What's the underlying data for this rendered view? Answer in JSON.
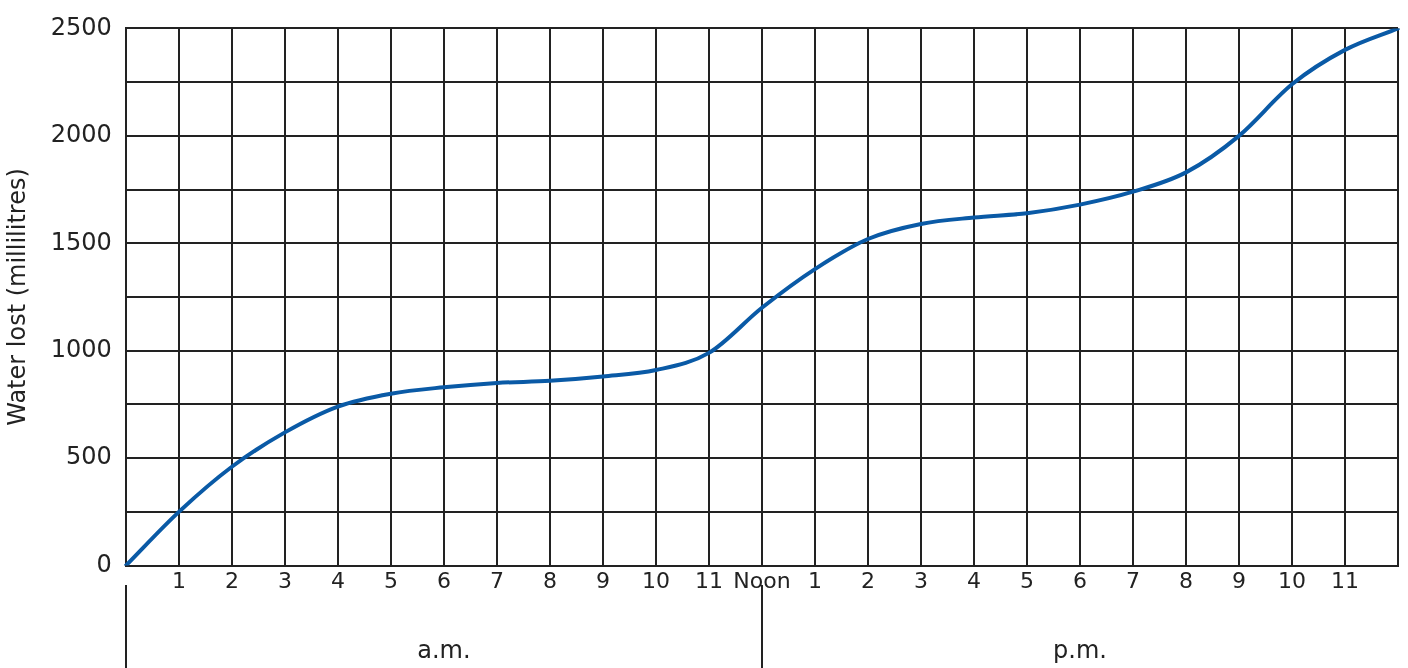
{
  "chart_data": {
    "type": "line",
    "ylabel": "Water lost (millilitres)",
    "categories": [
      null,
      "1",
      "2",
      "3",
      "4",
      "5",
      "6",
      "7",
      "8",
      "9",
      "10",
      "11",
      "Noon",
      "1",
      "2",
      "3",
      "4",
      "5",
      "6",
      "7",
      "8",
      "9",
      "10",
      "11",
      null
    ],
    "series": [
      {
        "color": "#0a5aa6",
        "values": [
          0,
          250,
          460,
          620,
          740,
          800,
          830,
          850,
          860,
          880,
          910,
          990,
          1200,
          1380,
          1520,
          1590,
          1620,
          1640,
          1680,
          1740,
          1830,
          2000,
          2240,
          2400,
          2500
        ]
      }
    ],
    "ylim": [
      0,
      2500
    ],
    "yticks": [
      0,
      {
        "value": 250,
        "label": null
      },
      500,
      {
        "value": 750,
        "label": null
      },
      1000,
      {
        "value": 1250,
        "label": null
      },
      1500,
      {
        "value": 1750,
        "label": null
      },
      2000,
      {
        "value": 2250,
        "label": null
      },
      2500
    ],
    "grid": true,
    "legend": false,
    "marker": "none",
    "line_style": "solid",
    "annotations": [
      "a.m.",
      "p.m."
    ]
  }
}
